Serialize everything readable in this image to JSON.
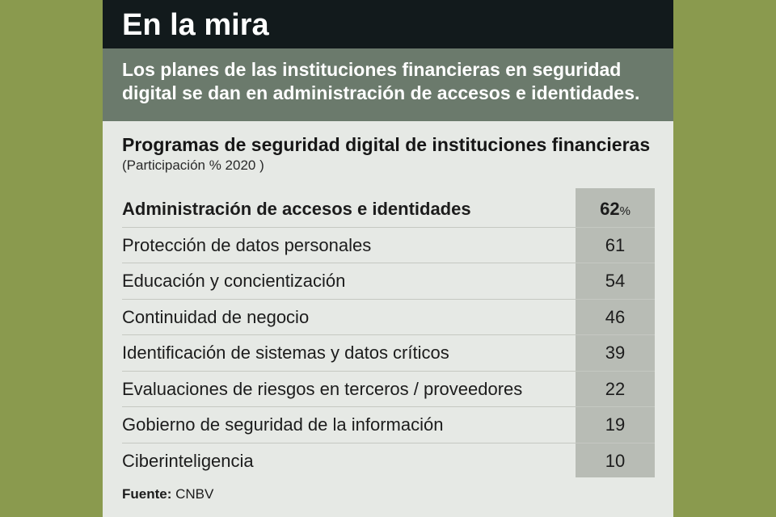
{
  "headline": "En la mira",
  "deck": "Los planes de las instituciones financieras en seguridad digital se dan en administración de accesos e identidades.",
  "colors": {
    "background": "#8a9a4e",
    "card": "#e6e9e5",
    "header": "#121a1c",
    "deck": "#6b7a6c",
    "value_column": "#b8bcb5"
  },
  "chart_data": {
    "type": "table",
    "title": "Programas de seguridad digital de instituciones financieras",
    "subtitle": "(Participación % 2020 )",
    "unit_symbol": "%",
    "categories": [
      "Administración de accesos e identidades",
      "Protección de datos personales",
      "Educación y concientización",
      "Continuidad de negocio",
      "Identificación de sistemas y datos críticos",
      "Evaluaciones de riesgos en terceros / proveedores",
      "Gobierno de seguridad de la información",
      "Ciberinteligencia"
    ],
    "values": [
      62,
      61,
      54,
      46,
      39,
      22,
      19,
      10
    ],
    "highlight_row": 0
  },
  "source": {
    "label": "Fuente:",
    "value": "CNBV"
  }
}
